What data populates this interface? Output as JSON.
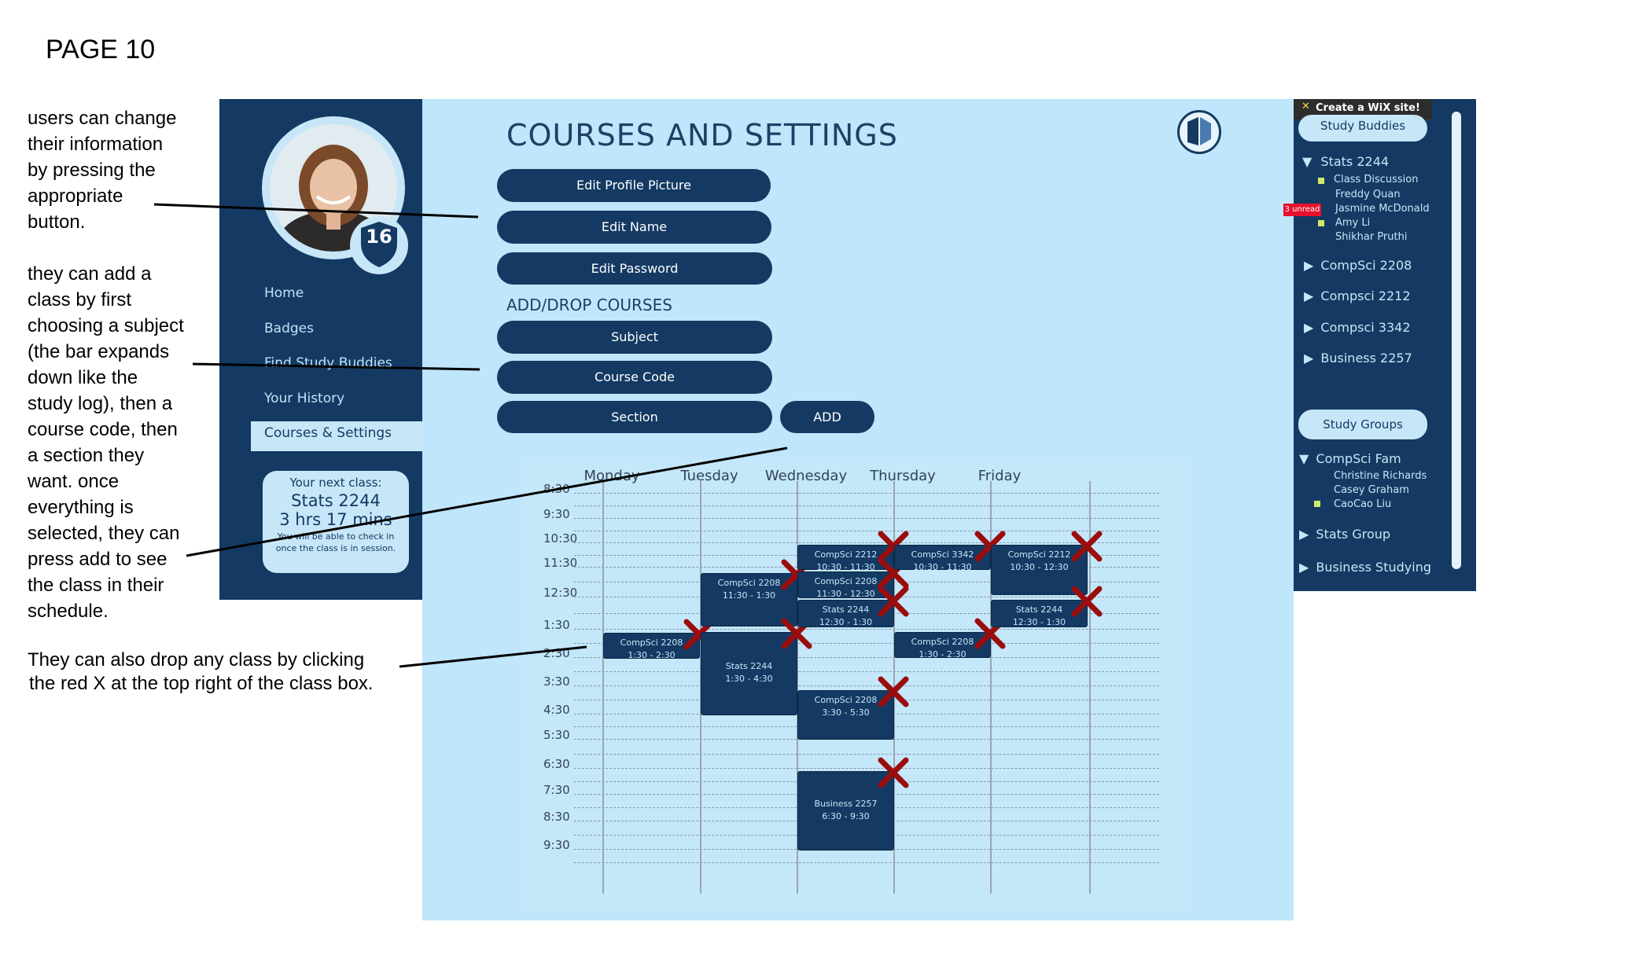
{
  "page_label": "PAGE 10",
  "notes": {
    "note1": [
      "users can change",
      "their information",
      "by pressing the",
      "appropriate",
      "button."
    ],
    "note2": [
      "they can add a",
      "class by first",
      "choosing a subject",
      "(the bar expands",
      "down like the",
      "study log), then a",
      "course code, then",
      "a section they",
      "want. once",
      "everything is",
      "selected, they can",
      "press add to see",
      "the class in their",
      "schedule."
    ],
    "note3": [
      "They can also drop any class by clicking",
      "the red X at the top right of the class box."
    ]
  },
  "sidebar": {
    "level": "16",
    "nav": [
      "Home",
      "Badges",
      "Find Study Buddies",
      "Your History",
      "Courses & Settings"
    ],
    "next_class": {
      "heading": "Your next class:",
      "course": "Stats 2244",
      "countdown": "3 hrs 17 mins",
      "note": "You will be able to check in once the class is in session."
    }
  },
  "main": {
    "title": "COURSES AND SETTINGS",
    "buttons": {
      "edit_picture": "Edit Profile Picture",
      "edit_name": "Edit Name",
      "edit_password": "Edit Password"
    },
    "add_drop_title": "ADD/DROP COURSES",
    "fields": {
      "subject": "Subject",
      "course_code": "Course Code",
      "section": "Section",
      "add": "ADD"
    }
  },
  "calendar": {
    "days": [
      "Monday",
      "Tuesday",
      "Wednesday",
      "Thursday",
      "Friday"
    ],
    "times": [
      "8:30",
      "9:30",
      "10:30",
      "11:30",
      "12:30",
      "1:30",
      "2:30",
      "3:30",
      "4:30",
      "5:30",
      "6:30",
      "7:30",
      "8:30",
      "9:30"
    ],
    "classes": [
      {
        "day": "Monday",
        "name": "CompSci 2208",
        "time": "1:30 - 2:30"
      },
      {
        "day": "Tuesday",
        "name": "CompSci 2208",
        "time": "11:30 - 1:30"
      },
      {
        "day": "Tuesday",
        "name": "Stats 2244",
        "time": "1:30 - 4:30"
      },
      {
        "day": "Wednesday",
        "name": "CompSci 2212",
        "time": "10:30 - 11:30"
      },
      {
        "day": "Wednesday",
        "name": "CompSci 2208",
        "time": "11:30 - 12:30"
      },
      {
        "day": "Wednesday",
        "name": "Stats 2244",
        "time": "12:30 - 1:30"
      },
      {
        "day": "Wednesday",
        "name": "CompSci 2208",
        "time": "3:30 - 5:30"
      },
      {
        "day": "Wednesday",
        "name": "Business 2257",
        "time": "6:30 - 9:30"
      },
      {
        "day": "Thursday",
        "name": "CompSci 3342",
        "time": "10:30 - 11:30"
      },
      {
        "day": "Thursday",
        "name": "CompSci 2208",
        "time": "1:30 - 2:30"
      },
      {
        "day": "Friday",
        "name": "CompSci 2212",
        "time": "10:30 - 12:30"
      },
      {
        "day": "Friday",
        "name": "Stats 2244",
        "time": "12:30 - 1:30"
      }
    ],
    "drop_color": "#9b0d0d"
  },
  "right_panel": {
    "wix": "Create a WiX site!",
    "study_buddies_btn": "Study Buddies",
    "stats": {
      "title": "Stats 2244",
      "items": [
        "Class Discussion",
        "Freddy Quan",
        "Jasmine McDonald",
        "Amy Li",
        "Shikhar Pruthi"
      ]
    },
    "unread": "3 unread",
    "courses": [
      "CompSci 2208",
      "Compsci 2212",
      "Compsci 3342",
      "Business 2257"
    ],
    "study_groups_btn": "Study Groups",
    "compsci_fam": {
      "title": "CompSci Fam",
      "items": [
        "Christine Richards",
        "Casey Graham",
        "CaoCao Liu"
      ]
    },
    "groups": [
      "Stats Group",
      "Business Studying"
    ]
  },
  "colors": {
    "navy": "#143a63",
    "light_blue": "#bfe6fa",
    "accent": "#c7e6f7"
  }
}
